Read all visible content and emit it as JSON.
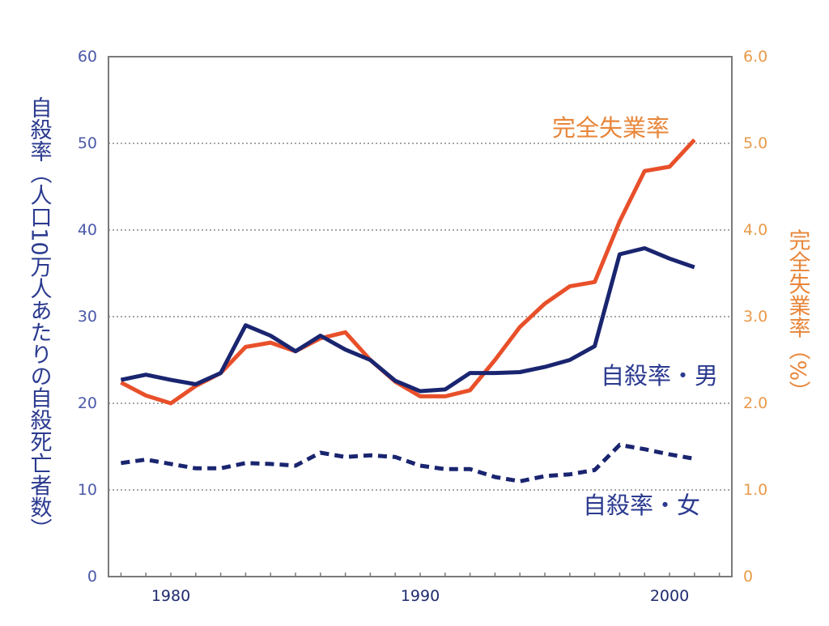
{
  "chart_data": {
    "type": "line",
    "x_ticks": [
      "1980",
      "1990",
      "2000"
    ],
    "xlim": [
      1977.5,
      2002.5
    ],
    "y_left": {
      "label": "自殺率（人口10万人あたりの自殺死亡者数）",
      "ticks": [
        "0",
        "10",
        "20",
        "30",
        "40",
        "50",
        "60"
      ],
      "ylim": [
        0,
        60
      ]
    },
    "y_right": {
      "label": "完全失業率（%）",
      "ticks": [
        "0",
        "1.0",
        "2.0",
        "3.0",
        "4.0",
        "5.0",
        "6.0"
      ],
      "ylim": [
        0,
        6
      ]
    },
    "grid": true,
    "series": [
      {
        "name": "完全失業率",
        "axis": "right",
        "color": "#e8502a",
        "style": "solid",
        "x": [
          1978,
          1979,
          1980,
          1981,
          1982,
          1983,
          1984,
          1985,
          1986,
          1987,
          1988,
          1989,
          1990,
          1991,
          1992,
          1993,
          1994,
          1995,
          1996,
          1997,
          1998,
          1999,
          2000,
          2001
        ],
        "values": [
          2.24,
          2.09,
          2.0,
          2.2,
          2.35,
          2.65,
          2.7,
          2.6,
          2.75,
          2.82,
          2.5,
          2.25,
          2.08,
          2.08,
          2.15,
          2.5,
          2.88,
          3.15,
          3.35,
          3.4,
          4.1,
          4.68,
          4.73,
          5.04
        ]
      },
      {
        "name": "自殺率・男",
        "axis": "left",
        "color": "#1a2570",
        "style": "solid",
        "x": [
          1978,
          1979,
          1980,
          1981,
          1982,
          1983,
          1984,
          1985,
          1986,
          1987,
          1988,
          1989,
          1990,
          1991,
          1992,
          1993,
          1994,
          1995,
          1996,
          1997,
          1998,
          1999,
          2000,
          2001
        ],
        "values": [
          22.7,
          23.3,
          22.7,
          22.2,
          23.5,
          29.0,
          27.8,
          26.0,
          27.8,
          26.2,
          25.0,
          22.6,
          21.4,
          21.6,
          23.5,
          23.5,
          23.6,
          24.2,
          25.0,
          26.6,
          37.2,
          37.9,
          36.7,
          35.7
        ]
      },
      {
        "name": "自殺率・女",
        "axis": "left",
        "color": "#1a2570",
        "style": "dashed",
        "x": [
          1978,
          1979,
          1980,
          1981,
          1982,
          1983,
          1984,
          1985,
          1986,
          1987,
          1988,
          1989,
          1990,
          1991,
          1992,
          1993,
          1994,
          1995,
          1996,
          1997,
          1998,
          1999,
          2000,
          2001
        ],
        "values": [
          13.1,
          13.5,
          13.0,
          12.5,
          12.5,
          13.1,
          13.0,
          12.8,
          14.3,
          13.8,
          14.0,
          13.8,
          12.8,
          12.4,
          12.4,
          11.5,
          11.0,
          11.6,
          11.8,
          12.3,
          15.2,
          14.7,
          14.1,
          13.6
        ]
      }
    ],
    "colors": {
      "left_axis_text": "#4a58a8",
      "right_axis_text": "#e99a4a",
      "frame": "#7a7a7a",
      "grid": "#888888"
    }
  }
}
